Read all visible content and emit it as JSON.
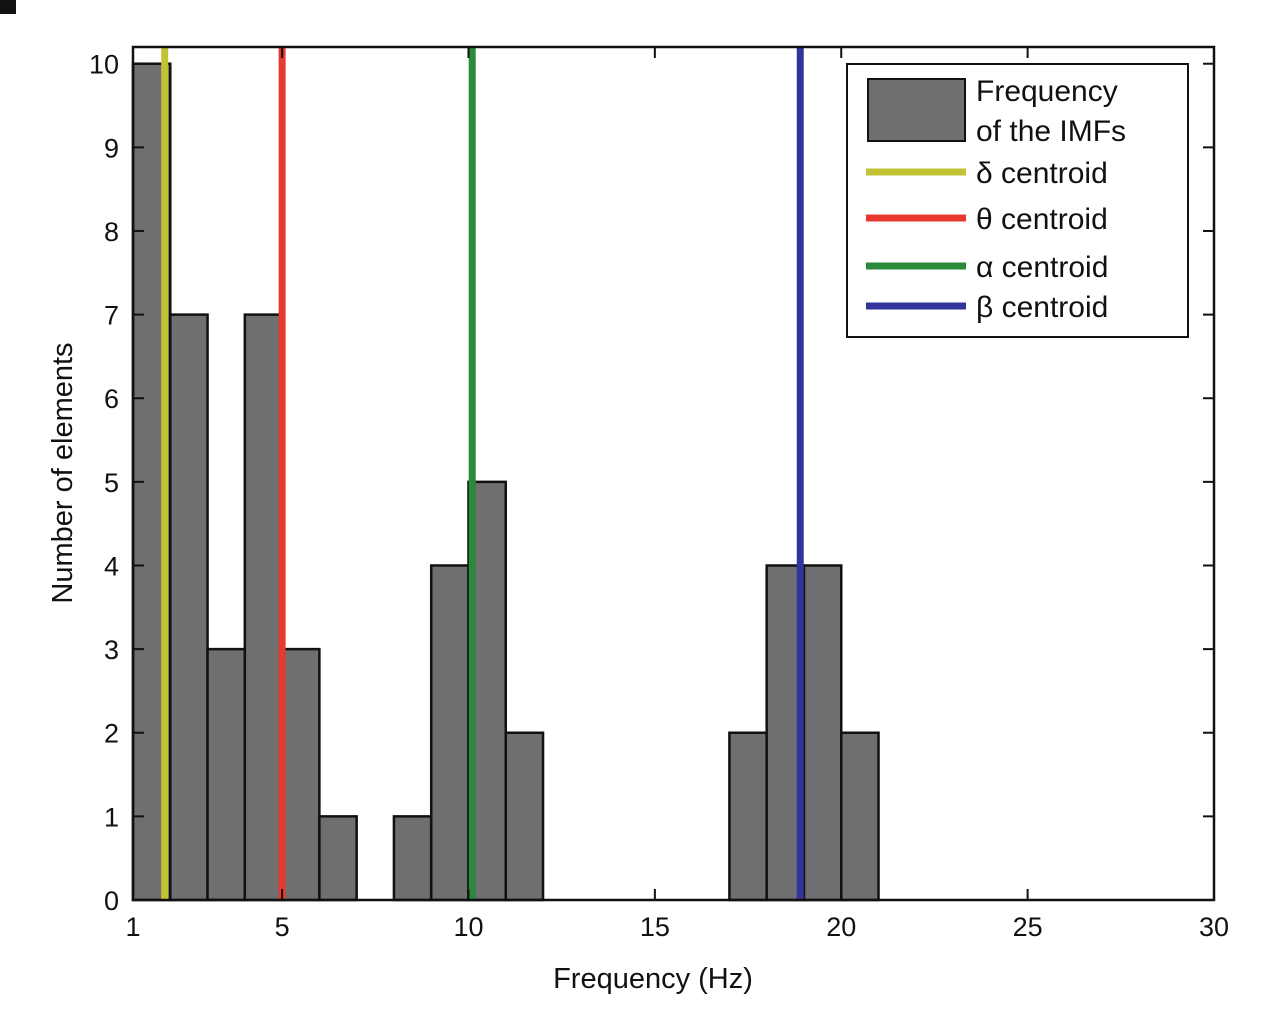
{
  "chart_data": {
    "type": "bar",
    "title": "",
    "xlabel": "Frequency (Hz)",
    "ylabel": "Number of elements",
    "xlim": [
      1,
      30
    ],
    "ylim": [
      0,
      10.2
    ],
    "xticks": [
      1,
      5,
      10,
      15,
      20,
      25,
      30
    ],
    "yticks": [
      0,
      1,
      2,
      3,
      4,
      5,
      6,
      7,
      8,
      9,
      10
    ],
    "grid": false,
    "legend_position": "top-right",
    "histogram": {
      "name": "Frequency of the IMFs",
      "legend_lines": [
        "Frequency",
        "of the IMFs"
      ],
      "color": "#6d6f70",
      "bin_width": 1,
      "bin_starts": [
        1,
        2,
        3,
        4,
        5,
        6,
        7,
        8,
        9,
        10,
        11,
        12,
        13,
        14,
        15,
        16,
        17,
        18,
        19,
        20
      ],
      "counts": [
        10,
        7,
        3,
        7,
        3,
        1,
        0,
        1,
        4,
        5,
        2,
        0,
        0,
        0,
        0,
        0,
        2,
        4,
        4,
        2
      ]
    },
    "centroids": [
      {
        "name": "δ centroid",
        "x": 1.85,
        "color": "#c2c334"
      },
      {
        "name": "θ centroid",
        "x": 5.0,
        "color": "#e8392e"
      },
      {
        "name": "α centroid",
        "x": 10.1,
        "color": "#2a8a3a"
      },
      {
        "name": "β centroid",
        "x": 18.9,
        "color": "#33349a"
      }
    ]
  }
}
